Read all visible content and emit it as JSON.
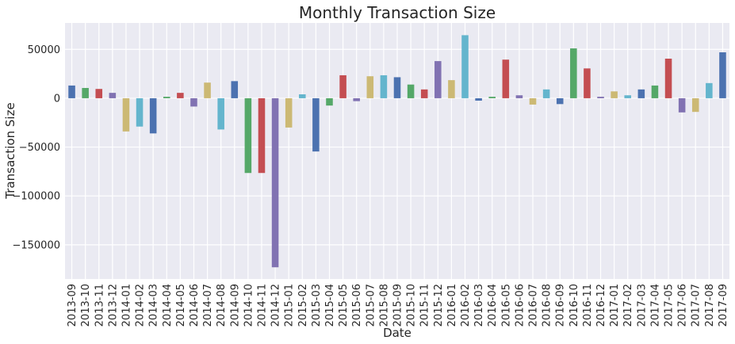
{
  "chart_data": {
    "type": "bar",
    "title": "Monthly Transaction Size",
    "xlabel": "Date",
    "ylabel": "Transaction Size",
    "ylim": [
      -185000,
      77000
    ],
    "yticks": [
      50000,
      0,
      -50000,
      -100000,
      -150000
    ],
    "ytick_labels": [
      "50000",
      "0",
      "−50000",
      "−100000",
      "−150000"
    ],
    "grid": true,
    "background": "#eaeaf2",
    "palette": [
      "#4c72b0",
      "#55a868",
      "#c44e52",
      "#8172b2",
      "#ccb974",
      "#64b5cd"
    ],
    "categories": [
      "2013-09",
      "2013-10",
      "2013-11",
      "2013-12",
      "2014-01",
      "2014-02",
      "2014-03",
      "2014-04",
      "2014-05",
      "2014-06",
      "2014-07",
      "2014-08",
      "2014-09",
      "2014-10",
      "2014-11",
      "2014-12",
      "2015-01",
      "2015-02",
      "2015-03",
      "2015-04",
      "2015-05",
      "2015-06",
      "2015-07",
      "2015-08",
      "2015-09",
      "2015-10",
      "2015-11",
      "2015-12",
      "2016-01",
      "2016-02",
      "2016-03",
      "2016-04",
      "2016-05",
      "2016-06",
      "2016-07",
      "2016-08",
      "2016-09",
      "2016-10",
      "2016-11",
      "2016-12",
      "2017-01",
      "2017-02",
      "2017-03",
      "2017-04",
      "2017-05",
      "2017-06",
      "2017-07",
      "2017-08",
      "2017-09"
    ],
    "values": [
      13000,
      10500,
      9500,
      5500,
      -34000,
      -29000,
      -36000,
      1500,
      5500,
      -8500,
      16000,
      -32000,
      17500,
      -76500,
      -76500,
      -173000,
      -30000,
      4000,
      -54500,
      -7500,
      23500,
      -3000,
      22500,
      23500,
      21500,
      14000,
      9000,
      38000,
      18500,
      64500,
      -2500,
      1500,
      39500,
      3000,
      -6500,
      9000,
      -6000,
      51000,
      30500,
      1500,
      7000,
      3000,
      9000,
      13000,
      40500,
      -14500,
      -14000,
      15500,
      47000
    ]
  }
}
